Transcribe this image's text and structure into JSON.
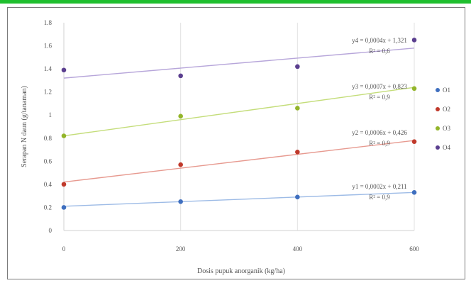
{
  "chart_data": {
    "type": "scatter",
    "xlabel": "Dosis pupuk anorganik (kg/ha)",
    "ylabel": "Serapan N daun (g/tanaman)",
    "x": [
      0,
      200,
      400,
      600
    ],
    "xticks": [
      "0",
      "200",
      "400",
      "600"
    ],
    "yticks": [
      "0",
      "0.2",
      "0.4",
      "0.6",
      "0.8",
      "1",
      "1.2",
      "1.4",
      "1.6",
      "1.8"
    ],
    "xlim": [
      0,
      600
    ],
    "ylim": [
      0,
      1.8
    ],
    "grid": "vertical",
    "legend_position": "right",
    "series": [
      {
        "name": "O1",
        "color": "#3f6fbf",
        "trend_color": "#9dbbe6",
        "values": [
          0.2,
          0.25,
          0.29,
          0.33
        ],
        "trend": [
          0.21,
          0.33
        ],
        "equation": "y1 = 0,0002x + 0,211",
        "r2": "R² = 0,9"
      },
      {
        "name": "O2",
        "color": "#c0392b",
        "trend_color": "#e79a90",
        "values": [
          0.4,
          0.57,
          0.68,
          0.77
        ],
        "trend": [
          0.42,
          0.78
        ],
        "equation": "y2 = 0,0006x + 0,426",
        "r2": "R² = 0,9"
      },
      {
        "name": "O3",
        "color": "#93b52a",
        "trend_color": "#c4dd7a",
        "values": [
          0.82,
          0.99,
          1.06,
          1.23
        ],
        "trend": [
          0.82,
          1.24
        ],
        "equation": "y3 = 0,0007x + 0,823",
        "r2": "R² = 0,9"
      },
      {
        "name": "O4",
        "color": "#5b3f8f",
        "trend_color": "#b7a6da",
        "values": [
          1.39,
          1.34,
          1.42,
          1.65
        ],
        "trend": [
          1.32,
          1.58
        ],
        "equation": "y4 = 0,0004x + 1,321",
        "r2": "R² = 0,6"
      }
    ]
  }
}
